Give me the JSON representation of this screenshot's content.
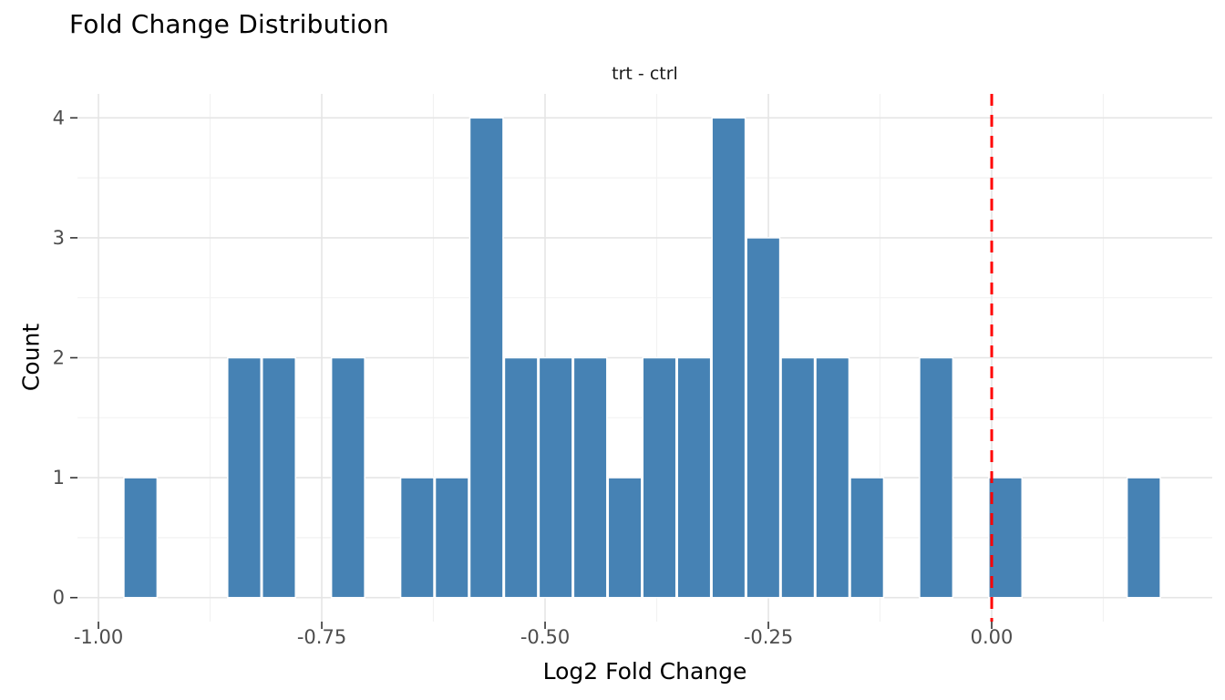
{
  "chart_data": {
    "type": "bar",
    "title": "Fold Change Distribution",
    "subtitle": "trt - ctrl",
    "xlabel": "Log2 Fold Change",
    "ylabel": "Count",
    "bar_color": "#4682B4",
    "bar_edge_color": "#ffffff",
    "grid_major_color": "#e5e5e5",
    "grid_minor_color": "#f2f2f2",
    "tick_mark_color": "#333333",
    "tick_label_color": "#4d4d4d",
    "vline": {
      "x": 0,
      "color": "#ff0000",
      "style": "dashed",
      "dash": [
        13,
        10
      ],
      "width": 3
    },
    "bin_start": -0.9723,
    "bin_width": 0.03873,
    "counts": [
      1,
      0,
      0,
      2,
      2,
      0,
      2,
      0,
      1,
      1,
      4,
      2,
      2,
      2,
      1,
      2,
      2,
      4,
      3,
      2,
      2,
      1,
      0,
      2,
      0,
      1,
      0,
      0,
      0,
      1
    ],
    "total_observations": 40,
    "x_ticks": [
      {
        "value": -1.0,
        "label": "-1.00"
      },
      {
        "value": -0.75,
        "label": "-0.75"
      },
      {
        "value": -0.5,
        "label": "-0.50"
      },
      {
        "value": -0.25,
        "label": "-0.25"
      },
      {
        "value": 0.0,
        "label": "0.00"
      }
    ],
    "y_ticks": [
      {
        "value": 0,
        "label": "0"
      },
      {
        "value": 1,
        "label": "1"
      },
      {
        "value": 2,
        "label": "2"
      },
      {
        "value": 3,
        "label": "3"
      },
      {
        "value": 4,
        "label": "4"
      }
    ],
    "x_minor_breaks": [
      -0.875,
      -0.625,
      -0.375,
      -0.125,
      0.125
    ],
    "y_minor_breaks": [
      0.5,
      1.5,
      2.5,
      3.5
    ],
    "xlim": [
      -1.0235,
      0.2469
    ],
    "ylim": [
      -0.2,
      4.2
    ],
    "grid": "on",
    "legend": "none"
  }
}
